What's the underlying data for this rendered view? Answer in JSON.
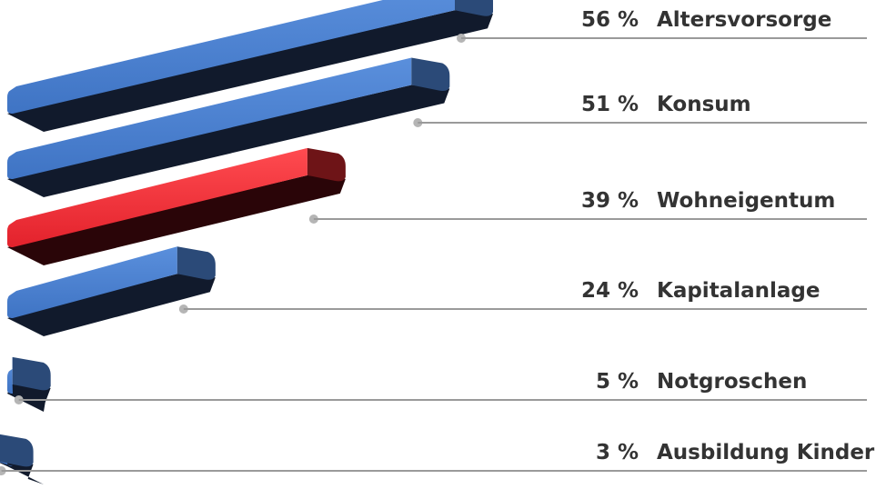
{
  "chart_data": {
    "type": "bar",
    "orientation": "horizontal",
    "unit": "%",
    "categories": [
      "Altersvorsorge",
      "Konsum",
      "Wohneigentum",
      "Kapitalanlage",
      "Notgroschen",
      "Ausbildung Kinder"
    ],
    "values": [
      56,
      51,
      39,
      24,
      5,
      3
    ],
    "value_labels": [
      "56 %",
      "51 %",
      "39 %",
      "24 %",
      "5 %",
      "3 %"
    ],
    "highlighted_category": "Wohneigentum",
    "title": "",
    "xlabel": "",
    "ylabel": "",
    "xlim": [
      0,
      56
    ],
    "grid": false,
    "legend": "none",
    "colors": {
      "bar_front": "#3f74c4",
      "bar_side": "#2b4a78",
      "bar_shadow": "#111a2c",
      "highlight_front": "#e3222c",
      "highlight_side": "#6e1417",
      "highlight_shadow": "#2a0508",
      "leader_line": "#9a9a9a",
      "label_text": "#333333"
    }
  }
}
